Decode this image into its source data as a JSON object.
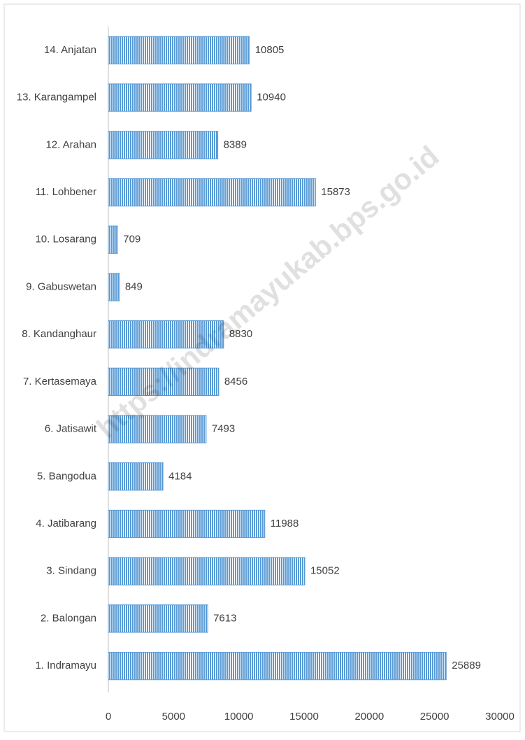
{
  "chart_data": {
    "type": "barh",
    "categories": [
      "1. Indramayu",
      "2. Balongan",
      "3. Sindang",
      "4. Jatibarang",
      "5. Bangodua",
      "6. Jatisawit",
      "7. Kertasemaya",
      "8. Kandanghaur",
      "9. Gabuswetan",
      "10. Losarang",
      "11. Lohbener",
      "12. Arahan",
      "13. Karangampel",
      "14. Anjatan"
    ],
    "values": [
      25889,
      7613,
      15052,
      11988,
      4184,
      7493,
      8456,
      8830,
      849,
      709,
      15873,
      8389,
      10940,
      10805
    ],
    "color": "#5b9bd5",
    "xlim": [
      0,
      30000
    ],
    "xticks": [
      0,
      5000,
      10000,
      15000,
      20000,
      25000,
      30000
    ],
    "watermark": "https://indramayukab.bps.go.id"
  }
}
